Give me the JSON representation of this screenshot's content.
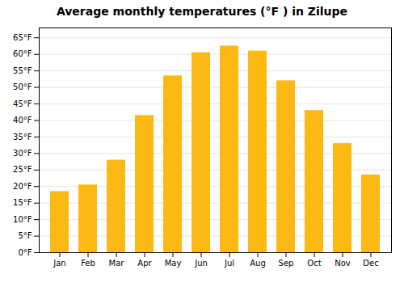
{
  "chart_data": {
    "type": "bar",
    "title": "Average monthly temperatures (°F ) in Zilupe",
    "categories": [
      "Jan",
      "Feb",
      "Mar",
      "Apr",
      "May",
      "Jun",
      "Jul",
      "Aug",
      "Sep",
      "Oct",
      "Nov",
      "Dec"
    ],
    "values": [
      18.5,
      20.5,
      28.0,
      41.5,
      53.5,
      60.5,
      62.5,
      61.0,
      52.0,
      43.0,
      33.0,
      23.5
    ],
    "color": "#FDB913",
    "ylim": [
      0,
      68
    ],
    "yticks": [
      {
        "value": 0,
        "label": "0°F"
      },
      {
        "value": 5,
        "label": "5°F"
      },
      {
        "value": 10,
        "label": "10°F"
      },
      {
        "value": 15,
        "label": "15°F"
      },
      {
        "value": 20,
        "label": "20°F"
      },
      {
        "value": 25,
        "label": "25°F"
      },
      {
        "value": 30,
        "label": "30°F"
      },
      {
        "value": 35,
        "label": "35°F"
      },
      {
        "value": 40,
        "label": "40°F"
      },
      {
        "value": 45,
        "label": "45°F"
      },
      {
        "value": 50,
        "label": "50°F"
      },
      {
        "value": 55,
        "label": "55°F"
      },
      {
        "value": 60,
        "label": "60°F"
      },
      {
        "value": 65,
        "label": "65°F"
      }
    ],
    "grid": true
  }
}
